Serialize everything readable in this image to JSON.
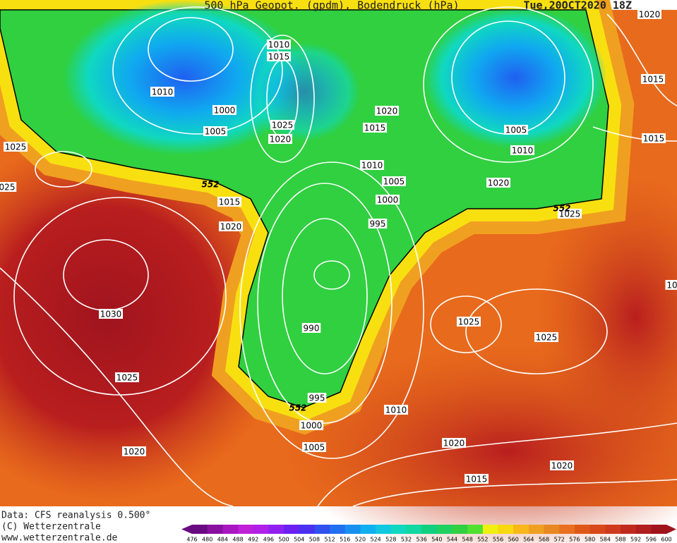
{
  "header": {
    "title": "500 hPa Geopot. (gpdm), Bodendruck (hPa)",
    "date": "Tue,20OCT2020 18Z"
  },
  "isobar_labels": [
    "1010",
    "1015",
    "1010",
    "1000",
    "1005",
    "1025",
    "1020",
    "1025",
    "025",
    "1015",
    "1020",
    "1030",
    "1025",
    "1020",
    "1020",
    "1015",
    "1010",
    "1005",
    "1000",
    "995",
    "990",
    "995",
    "1000",
    "1005",
    "1010",
    "1020",
    "1015",
    "1020",
    "1025",
    "1025",
    "1025",
    "1020",
    "1010",
    "1005",
    "1015",
    "1015",
    "1020",
    "10"
  ],
  "contour_labels": [
    "552",
    "552",
    "552"
  ],
  "footer": {
    "source": "Data: CFS reanalysis 0.500°",
    "copyright": "(C) Wetterzentrale",
    "url": "www.wetterzentrale.de"
  },
  "legend": {
    "ticks": [
      476,
      480,
      484,
      488,
      492,
      496,
      500,
      504,
      508,
      512,
      516,
      520,
      524,
      528,
      532,
      536,
      540,
      544,
      548,
      552,
      556,
      560,
      564,
      568,
      572,
      576,
      580,
      584,
      588,
      592,
      596,
      600
    ],
    "colors": [
      "#6a0a80",
      "#8a10a0",
      "#a818c0",
      "#c020d8",
      "#b020e8",
      "#9020f0",
      "#6a20f0",
      "#4a30f0",
      "#3050f0",
      "#2070f0",
      "#1890f0",
      "#10b0f0",
      "#10c8e0",
      "#10d8c0",
      "#10d8a0",
      "#10d080",
      "#20d060",
      "#30d040",
      "#50e030",
      "#f0f010",
      "#f8d810",
      "#f8b818",
      "#f0a020",
      "#e88820",
      "#e87020",
      "#e05818",
      "#d84818",
      "#d03a1c",
      "#c02a1e",
      "#b01e1e",
      "#a0141e"
    ]
  }
}
